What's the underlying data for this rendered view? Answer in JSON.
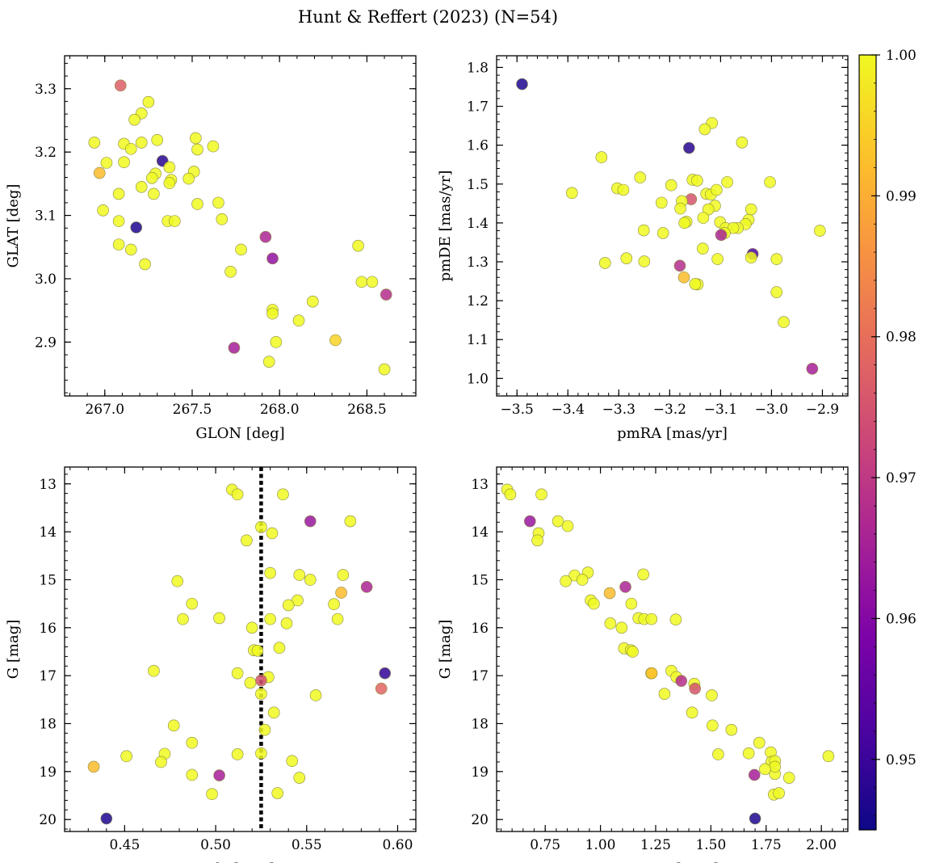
{
  "figure": {
    "title": "Hunt & Reffert (2023) (N=54)"
  },
  "colors": {
    "colormap": "plasma",
    "marker_edge": "#8a8a40",
    "vline": "#000000"
  },
  "colorbar": {
    "vmin": 0.945,
    "vmax": 1.0,
    "ticks": [
      "1.00",
      "0.99",
      "0.98",
      "0.97",
      "0.96",
      "0.95"
    ],
    "tick_values": [
      1.0,
      0.99,
      0.98,
      0.97,
      0.96,
      0.95
    ]
  },
  "chart_data": [
    {
      "type": "scatter",
      "id": "glon-glat",
      "xlabel": "GLON [deg]",
      "ylabel": "GLAT [deg]",
      "xlim": [
        266.77,
        268.78
      ],
      "ylim": [
        2.815,
        3.352
      ],
      "y_inverted": false,
      "xticks": [
        267.0,
        267.5,
        268.0,
        268.5
      ],
      "xtick_labels": [
        "267.0",
        "267.5",
        "268.0",
        "268.5"
      ],
      "yticks": [
        2.9,
        3.0,
        3.1,
        3.2,
        3.3
      ],
      "ytick_labels": [
        "2.9",
        "3.0",
        "3.1",
        "3.2",
        "3.3"
      ],
      "x_minor_step": 0.1,
      "y_minor_step": 0.02,
      "points": [
        [
          267.09,
          3.305,
          0.977
        ],
        [
          267.25,
          3.279,
          1.0
        ],
        [
          267.21,
          3.261,
          1.0
        ],
        [
          267.17,
          3.251,
          1.0
        ],
        [
          266.94,
          3.215,
          1.0
        ],
        [
          267.11,
          3.213,
          1.0
        ],
        [
          267.21,
          3.215,
          1.0
        ],
        [
          267.3,
          3.219,
          1.0
        ],
        [
          267.15,
          3.205,
          1.0
        ],
        [
          267.52,
          3.222,
          1.0
        ],
        [
          267.53,
          3.204,
          1.0
        ],
        [
          267.62,
          3.209,
          1.0
        ],
        [
          267.01,
          3.183,
          1.0
        ],
        [
          267.11,
          3.184,
          1.0
        ],
        [
          267.33,
          3.186,
          0.948
        ],
        [
          266.97,
          3.167,
          0.992
        ],
        [
          267.37,
          3.176,
          1.0
        ],
        [
          267.29,
          3.166,
          1.0
        ],
        [
          267.51,
          3.169,
          1.0
        ],
        [
          267.27,
          3.159,
          1.0
        ],
        [
          267.38,
          3.156,
          1.0
        ],
        [
          267.48,
          3.158,
          1.0
        ],
        [
          267.37,
          3.151,
          1.0
        ],
        [
          267.21,
          3.145,
          1.0
        ],
        [
          267.08,
          3.134,
          1.0
        ],
        [
          267.28,
          3.134,
          1.0
        ],
        [
          267.65,
          3.12,
          1.0
        ],
        [
          267.53,
          3.118,
          1.0
        ],
        [
          266.99,
          3.108,
          1.0
        ],
        [
          267.08,
          3.091,
          1.0
        ],
        [
          267.36,
          3.091,
          1.0
        ],
        [
          267.4,
          3.091,
          1.0
        ],
        [
          267.67,
          3.094,
          1.0
        ],
        [
          267.18,
          3.081,
          0.947
        ],
        [
          267.92,
          3.066,
          0.966
        ],
        [
          267.08,
          3.054,
          1.0
        ],
        [
          267.15,
          3.046,
          1.0
        ],
        [
          267.78,
          3.046,
          1.0
        ],
        [
          268.45,
          3.052,
          1.0
        ],
        [
          267.96,
          3.032,
          0.962
        ],
        [
          267.23,
          3.023,
          1.0
        ],
        [
          267.72,
          3.011,
          1.0
        ],
        [
          268.47,
          2.995,
          1.0
        ],
        [
          268.53,
          2.995,
          1.0
        ],
        [
          268.61,
          2.975,
          0.968
        ],
        [
          268.19,
          2.964,
          1.0
        ],
        [
          267.96,
          2.951,
          1.0
        ],
        [
          267.96,
          2.945,
          1.0
        ],
        [
          268.11,
          2.934,
          1.0
        ],
        [
          268.32,
          2.903,
          0.995
        ],
        [
          267.98,
          2.9,
          1.0
        ],
        [
          267.74,
          2.891,
          0.965
        ],
        [
          267.94,
          2.869,
          1.0
        ],
        [
          268.6,
          2.857,
          1.0
        ]
      ]
    },
    {
      "type": "scatter",
      "id": "pmra-pmde",
      "xlabel": "pmRA [mas/yr]",
      "ylabel": "pmDE [mas/yr]",
      "xlim": [
        -3.54,
        -2.85
      ],
      "ylim": [
        0.955,
        1.83
      ],
      "y_inverted": false,
      "xticks": [
        -3.5,
        -3.4,
        -3.3,
        -3.2,
        -3.1,
        -3.0,
        -2.9
      ],
      "xtick_labels": [
        "−3.5",
        "−3.4",
        "−3.3",
        "−3.2",
        "−3.1",
        "−3.0",
        "−2.9"
      ],
      "yticks": [
        1.0,
        1.1,
        1.2,
        1.3,
        1.4,
        1.5,
        1.6,
        1.7,
        1.8
      ],
      "ytick_labels": [
        "1.0",
        "1.1",
        "1.2",
        "1.3",
        "1.4",
        "1.5",
        "1.6",
        "1.7",
        "1.8"
      ],
      "x_minor_step": 0.02,
      "y_minor_step": 0.02,
      "points": [
        [
          -3.49,
          1.757,
          0.947
        ],
        [
          -3.117,
          1.657,
          1.0
        ],
        [
          -3.131,
          1.641,
          1.0
        ],
        [
          -3.162,
          1.593,
          0.948
        ],
        [
          -3.058,
          1.607,
          1.0
        ],
        [
          -3.334,
          1.569,
          1.0
        ],
        [
          -3.258,
          1.517,
          1.0
        ],
        [
          -3.155,
          1.511,
          1.0
        ],
        [
          -3.146,
          1.509,
          1.0
        ],
        [
          -3.003,
          1.505,
          1.0
        ],
        [
          -3.087,
          1.505,
          1.0
        ],
        [
          -3.197,
          1.497,
          1.0
        ],
        [
          -3.303,
          1.489,
          1.0
        ],
        [
          -3.291,
          1.485,
          1.0
        ],
        [
          -3.392,
          1.477,
          1.0
        ],
        [
          -3.128,
          1.475,
          1.0
        ],
        [
          -3.119,
          1.473,
          1.0
        ],
        [
          -3.108,
          1.485,
          1.0
        ],
        [
          -3.158,
          1.461,
          0.975
        ],
        [
          -3.176,
          1.456,
          1.0
        ],
        [
          -3.216,
          1.452,
          1.0
        ],
        [
          -3.111,
          1.444,
          1.0
        ],
        [
          -3.179,
          1.437,
          1.0
        ],
        [
          -3.124,
          1.435,
          1.0
        ],
        [
          -3.04,
          1.435,
          1.0
        ],
        [
          -3.134,
          1.413,
          1.0
        ],
        [
          -3.045,
          1.408,
          1.0
        ],
        [
          -3.167,
          1.403,
          1.0
        ],
        [
          -3.171,
          1.4,
          1.0
        ],
        [
          -3.101,
          1.402,
          1.0
        ],
        [
          -3.051,
          1.397,
          1.0
        ],
        [
          -3.066,
          1.387,
          1.0
        ],
        [
          -3.09,
          1.387,
          1.0
        ],
        [
          -3.075,
          1.387,
          1.0
        ],
        [
          -3.251,
          1.381,
          1.0
        ],
        [
          -2.905,
          1.38,
          1.0
        ],
        [
          -3.213,
          1.374,
          1.0
        ],
        [
          -3.092,
          1.374,
          1.0
        ],
        [
          -3.099,
          1.369,
          0.966
        ],
        [
          -3.135,
          1.334,
          1.0
        ],
        [
          -3.037,
          1.32,
          0.952
        ],
        [
          -3.04,
          1.311,
          1.0
        ],
        [
          -3.285,
          1.309,
          1.0
        ],
        [
          -3.106,
          1.307,
          1.0
        ],
        [
          -2.99,
          1.307,
          1.0
        ],
        [
          -3.25,
          1.301,
          1.0
        ],
        [
          -3.327,
          1.297,
          1.0
        ],
        [
          -3.18,
          1.29,
          0.968
        ],
        [
          -3.172,
          1.26,
          0.992
        ],
        [
          -3.145,
          1.242,
          1.0
        ],
        [
          -2.99,
          1.222,
          1.0
        ],
        [
          -2.976,
          1.145,
          1.0
        ],
        [
          -2.92,
          1.025,
          0.965
        ],
        [
          -3.15,
          1.243,
          1.0
        ]
      ]
    },
    {
      "type": "scatter",
      "id": "plx-g",
      "xlabel": "Plx [mas]",
      "ylabel": "G [mag]",
      "xlim": [
        0.417,
        0.61
      ],
      "ylim": [
        12.65,
        20.25
      ],
      "y_inverted": true,
      "xticks": [
        0.45,
        0.5,
        0.55,
        0.6
      ],
      "xtick_labels": [
        "0.45",
        "0.50",
        "0.55",
        "0.60"
      ],
      "yticks": [
        13,
        14,
        15,
        16,
        17,
        18,
        19,
        20
      ],
      "ytick_labels": [
        "13",
        "14",
        "15",
        "16",
        "17",
        "18",
        "19",
        "20"
      ],
      "x_minor_step": 0.01,
      "y_minor_step": 0.2,
      "vline": {
        "x": 0.525,
        "style": "dotted"
      },
      "points": [
        [
          0.509,
          13.12,
          1.0
        ],
        [
          0.512,
          13.22,
          1.0
        ],
        [
          0.537,
          13.22,
          1.0
        ],
        [
          0.552,
          13.78,
          0.963
        ],
        [
          0.574,
          13.78,
          1.0
        ],
        [
          0.525,
          13.9,
          1.0
        ],
        [
          0.531,
          14.03,
          1.0
        ],
        [
          0.517,
          14.18,
          1.0
        ],
        [
          0.546,
          14.9,
          1.0
        ],
        [
          0.57,
          14.9,
          1.0
        ],
        [
          0.53,
          14.86,
          1.0
        ],
        [
          0.552,
          15.0,
          1.0
        ],
        [
          0.479,
          15.03,
          1.0
        ],
        [
          0.583,
          15.15,
          0.966
        ],
        [
          0.569,
          15.27,
          0.992
        ],
        [
          0.545,
          15.43,
          1.0
        ],
        [
          0.487,
          15.5,
          1.0
        ],
        [
          0.54,
          15.53,
          1.0
        ],
        [
          0.565,
          15.51,
          1.0
        ],
        [
          0.502,
          15.8,
          1.0
        ],
        [
          0.482,
          15.82,
          1.0
        ],
        [
          0.53,
          15.82,
          1.0
        ],
        [
          0.567,
          15.82,
          1.0
        ],
        [
          0.539,
          15.91,
          1.0
        ],
        [
          0.52,
          16.0,
          1.0
        ],
        [
          0.521,
          16.47,
          1.0
        ],
        [
          0.523,
          16.48,
          1.0
        ],
        [
          0.535,
          16.42,
          1.0
        ],
        [
          0.466,
          16.9,
          1.0
        ],
        [
          0.512,
          16.95,
          1.0
        ],
        [
          0.593,
          16.95,
          0.949
        ],
        [
          0.529,
          17.03,
          1.0
        ],
        [
          0.519,
          17.15,
          1.0
        ],
        [
          0.525,
          17.1,
          0.975
        ],
        [
          0.591,
          17.27,
          0.978
        ],
        [
          0.525,
          17.38,
          1.0
        ],
        [
          0.555,
          17.41,
          1.0
        ],
        [
          0.532,
          17.77,
          1.0
        ],
        [
          0.477,
          18.04,
          1.0
        ],
        [
          0.527,
          18.13,
          1.0
        ],
        [
          0.487,
          18.4,
          1.0
        ],
        [
          0.472,
          18.63,
          1.0
        ],
        [
          0.512,
          18.64,
          1.0
        ],
        [
          0.525,
          18.62,
          1.0
        ],
        [
          0.451,
          18.68,
          1.0
        ],
        [
          0.47,
          18.8,
          1.0
        ],
        [
          0.542,
          18.78,
          1.0
        ],
        [
          0.433,
          18.9,
          0.992
        ],
        [
          0.487,
          19.07,
          1.0
        ],
        [
          0.502,
          19.08,
          0.965
        ],
        [
          0.546,
          19.13,
          1.0
        ],
        [
          0.498,
          19.47,
          1.0
        ],
        [
          0.534,
          19.45,
          1.0
        ],
        [
          0.44,
          19.98,
          0.947
        ]
      ]
    },
    {
      "type": "scatter",
      "id": "bprp-g",
      "xlabel": "BP-RP [mag]",
      "ylabel": "G [mag]",
      "xlim": [
        0.53,
        2.12
      ],
      "ylim": [
        12.65,
        20.25
      ],
      "y_inverted": true,
      "xticks": [
        0.75,
        1.0,
        1.25,
        1.5,
        1.75,
        2.0
      ],
      "xtick_labels": [
        "0.75",
        "1.00",
        "1.25",
        "1.50",
        "1.75",
        "2.00"
      ],
      "yticks": [
        13,
        14,
        15,
        16,
        17,
        18,
        19,
        20
      ],
      "ytick_labels": [
        "13",
        "14",
        "15",
        "16",
        "17",
        "18",
        "19",
        "20"
      ],
      "x_minor_step": 0.05,
      "y_minor_step": 0.2,
      "points": [
        [
          0.578,
          13.12,
          1.0
        ],
        [
          0.592,
          13.22,
          1.0
        ],
        [
          0.733,
          13.22,
          1.0
        ],
        [
          0.681,
          13.78,
          0.963
        ],
        [
          0.808,
          13.78,
          1.0
        ],
        [
          0.852,
          13.88,
          1.0
        ],
        [
          0.72,
          14.03,
          1.0
        ],
        [
          0.715,
          14.18,
          1.0
        ],
        [
          0.943,
          14.85,
          1.0
        ],
        [
          0.883,
          14.91,
          1.0
        ],
        [
          1.194,
          14.89,
          1.0
        ],
        [
          0.843,
          15.03,
          1.0
        ],
        [
          0.918,
          15.0,
          1.0
        ],
        [
          1.113,
          15.15,
          0.966
        ],
        [
          1.042,
          15.28,
          0.992
        ],
        [
          0.956,
          15.43,
          1.0
        ],
        [
          0.97,
          15.5,
          1.0
        ],
        [
          1.14,
          15.5,
          1.0
        ],
        [
          1.172,
          15.8,
          1.0
        ],
        [
          1.198,
          15.82,
          1.0
        ],
        [
          1.231,
          15.82,
          1.0
        ],
        [
          1.341,
          15.83,
          1.0
        ],
        [
          1.045,
          15.91,
          1.0
        ],
        [
          1.096,
          16.0,
          1.0
        ],
        [
          1.107,
          16.43,
          1.0
        ],
        [
          1.138,
          16.47,
          1.0
        ],
        [
          1.146,
          16.5,
          1.0
        ],
        [
          1.23,
          16.95,
          1.0
        ],
        [
          1.232,
          16.95,
          0.992
        ],
        [
          1.321,
          16.9,
          1.0
        ],
        [
          1.344,
          17.03,
          1.0
        ],
        [
          1.366,
          17.11,
          0.968
        ],
        [
          1.425,
          17.17,
          1.0
        ],
        [
          1.428,
          17.27,
          0.975
        ],
        [
          1.29,
          17.38,
          1.0
        ],
        [
          1.504,
          17.41,
          1.0
        ],
        [
          1.415,
          17.77,
          1.0
        ],
        [
          1.507,
          18.04,
          1.0
        ],
        [
          1.593,
          18.13,
          1.0
        ],
        [
          1.719,
          18.4,
          1.0
        ],
        [
          1.533,
          18.64,
          1.0
        ],
        [
          1.671,
          18.62,
          1.0
        ],
        [
          1.771,
          18.6,
          1.0
        ],
        [
          2.032,
          18.68,
          1.0
        ],
        [
          1.774,
          18.8,
          1.0
        ],
        [
          1.79,
          18.78,
          1.0
        ],
        [
          1.79,
          19.05,
          1.0
        ],
        [
          1.697,
          19.07,
          0.965
        ],
        [
          1.854,
          19.13,
          1.0
        ],
        [
          1.785,
          19.48,
          1.0
        ],
        [
          1.808,
          19.45,
          1.0
        ],
        [
          1.7,
          19.98,
          0.947
        ],
        [
          1.79,
          18.9,
          1.0
        ],
        [
          1.745,
          18.95,
          1.0
        ]
      ]
    }
  ]
}
